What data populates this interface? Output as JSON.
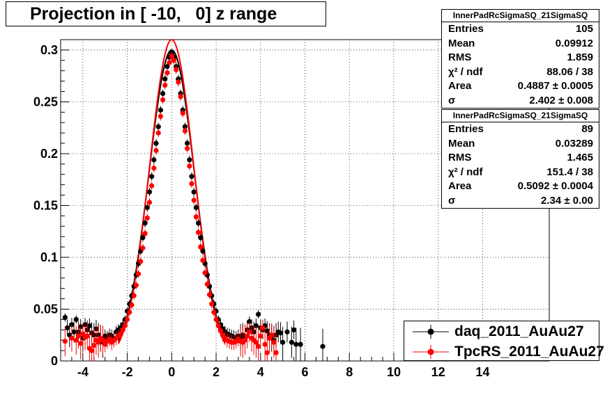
{
  "title": "Projection in [ -10,   0] z range",
  "stats": [
    {
      "header": "InnerPadRcSigmaSQ_21SigmaSQ",
      "rows": [
        [
          "Entries",
          "105"
        ],
        [
          "Mean",
          "0.09912"
        ],
        [
          "RMS",
          "1.859"
        ],
        [
          "χ² / ndf",
          "88.06 / 38"
        ],
        [
          "Area",
          "0.4887 ± 0.0005"
        ],
        [
          "σ",
          "2.402 ± 0.008"
        ]
      ]
    },
    {
      "header": "InnerPadRcSigmaSQ_21SigmaSQ",
      "rows": [
        [
          "Entries",
          "89"
        ],
        [
          "Mean",
          "0.03289"
        ],
        [
          "RMS",
          "1.465"
        ],
        [
          "χ² / ndf",
          "151.4 / 38"
        ],
        [
          "Area",
          "0.5092 ± 0.0004"
        ],
        [
          "σ",
          "2.34 ± 0.00"
        ]
      ]
    }
  ],
  "legend": [
    {
      "label": "daq_2011_AuAu27",
      "color": "#000000"
    },
    {
      "label": "TpcRS_2011_AuAu27",
      "color": "#ff0000"
    }
  ],
  "chart_data": {
    "type": "scatter",
    "title": "Projection in [ -10,   0] z range",
    "xlim": [
      -5,
      17
    ],
    "ylim": [
      0,
      0.31
    ],
    "x_ticks": [
      -4,
      -2,
      0,
      2,
      4,
      6,
      8,
      10,
      12,
      14
    ],
    "y_ticks": [
      0,
      0.05,
      0.1,
      0.15,
      0.2,
      0.25,
      0.3
    ],
    "grid": true,
    "legend_position": "bottom-right",
    "series": [
      {
        "name": "daq_2011_AuAu27",
        "color": "#000000",
        "points": [
          [
            -4.8,
            0.042
          ],
          [
            -4.7,
            0.032
          ],
          [
            -4.6,
            0.025
          ],
          [
            -4.5,
            0.035
          ],
          [
            -4.4,
            0.028
          ],
          [
            -4.3,
            0.04
          ],
          [
            -4.2,
            0.028
          ],
          [
            -4.1,
            0.033
          ],
          [
            -4.0,
            0.022
          ],
          [
            -3.9,
            0.035
          ],
          [
            -3.8,
            0.03
          ],
          [
            -3.7,
            0.034
          ],
          [
            -3.6,
            0.027
          ],
          [
            -3.5,
            0.025
          ],
          [
            -3.4,
            0.031
          ],
          [
            -3.3,
            0.025
          ],
          [
            -3.2,
            0.022
          ],
          [
            -3.1,
            0.018
          ],
          [
            -3.0,
            0.024
          ],
          [
            -2.9,
            0.022
          ],
          [
            -2.8,
            0.025
          ],
          [
            -2.7,
            0.024
          ],
          [
            -2.6,
            0.022
          ],
          [
            -2.5,
            0.028
          ],
          [
            -2.4,
            0.03
          ],
          [
            -2.3,
            0.032
          ],
          [
            -2.2,
            0.035
          ],
          [
            -2.1,
            0.04
          ],
          [
            -2.0,
            0.048
          ],
          [
            -1.9,
            0.055
          ],
          [
            -1.8,
            0.063
          ],
          [
            -1.7,
            0.072
          ],
          [
            -1.6,
            0.083
          ],
          [
            -1.5,
            0.094
          ],
          [
            -1.4,
            0.106
          ],
          [
            -1.3,
            0.119
          ],
          [
            -1.2,
            0.133
          ],
          [
            -1.1,
            0.148
          ],
          [
            -1.0,
            0.163
          ],
          [
            -0.9,
            0.178
          ],
          [
            -0.8,
            0.194
          ],
          [
            -0.7,
            0.21
          ],
          [
            -0.6,
            0.226
          ],
          [
            -0.5,
            0.242
          ],
          [
            -0.4,
            0.258
          ],
          [
            -0.3,
            0.272
          ],
          [
            -0.2,
            0.284
          ],
          [
            -0.1,
            0.293
          ],
          [
            0.0,
            0.297
          ],
          [
            0.1,
            0.293
          ],
          [
            0.2,
            0.284
          ],
          [
            0.3,
            0.272
          ],
          [
            0.4,
            0.258
          ],
          [
            0.5,
            0.242
          ],
          [
            0.6,
            0.226
          ],
          [
            0.7,
            0.21
          ],
          [
            0.8,
            0.194
          ],
          [
            0.9,
            0.178
          ],
          [
            1.0,
            0.163
          ],
          [
            1.1,
            0.148
          ],
          [
            1.2,
            0.133
          ],
          [
            1.3,
            0.119
          ],
          [
            1.4,
            0.106
          ],
          [
            1.5,
            0.094
          ],
          [
            1.6,
            0.083
          ],
          [
            1.7,
            0.072
          ],
          [
            1.8,
            0.063
          ],
          [
            1.9,
            0.055
          ],
          [
            2.0,
            0.048
          ],
          [
            2.1,
            0.04
          ],
          [
            2.2,
            0.035
          ],
          [
            2.3,
            0.031
          ],
          [
            2.4,
            0.028
          ],
          [
            2.5,
            0.026
          ],
          [
            2.6,
            0.025
          ],
          [
            2.7,
            0.024
          ],
          [
            2.8,
            0.023
          ],
          [
            2.9,
            0.022
          ],
          [
            3.0,
            0.024
          ],
          [
            3.1,
            0.023
          ],
          [
            3.2,
            0.025
          ],
          [
            3.3,
            0.022
          ],
          [
            3.4,
            0.03
          ],
          [
            3.5,
            0.038
          ],
          [
            3.6,
            0.032
          ],
          [
            3.7,
            0.028
          ],
          [
            3.8,
            0.034
          ],
          [
            3.9,
            0.045
          ],
          [
            4.0,
            0.032
          ],
          [
            4.1,
            0.03
          ],
          [
            4.2,
            0.034
          ],
          [
            4.3,
            0.029
          ],
          [
            4.4,
            0.025
          ],
          [
            4.5,
            0.022
          ],
          [
            4.6,
            0.02
          ],
          [
            4.7,
            0.025
          ],
          [
            4.8,
            0.028
          ],
          [
            4.9,
            0.027
          ],
          [
            5.0,
            0.018
          ],
          [
            5.2,
            0.028
          ],
          [
            5.4,
            0.018
          ],
          [
            5.5,
            0.03
          ],
          [
            5.6,
            0.016
          ],
          [
            5.8,
            0.016
          ],
          [
            6.8,
            0.014
          ]
        ]
      },
      {
        "name": "TpcRS_2011_AuAu27",
        "color": "#ff0000",
        "points": [
          [
            -4.8,
            0.019
          ],
          [
            -4.5,
            0.022
          ],
          [
            -4.3,
            0.02
          ],
          [
            -4.2,
            0.024
          ],
          [
            -4.1,
            0.017
          ],
          [
            -4.0,
            0.026
          ],
          [
            -3.9,
            0.023
          ],
          [
            -3.8,
            0.024
          ],
          [
            -3.7,
            0.012
          ],
          [
            -3.6,
            0.01
          ],
          [
            -3.5,
            0.015
          ],
          [
            -3.4,
            0.02
          ],
          [
            -3.3,
            0.018
          ],
          [
            -3.2,
            0.022
          ],
          [
            -3.1,
            0.02
          ],
          [
            -3.0,
            0.016
          ],
          [
            -2.9,
            0.019
          ],
          [
            -2.8,
            0.021
          ],
          [
            -2.7,
            0.018
          ],
          [
            -2.6,
            0.02
          ],
          [
            -2.5,
            0.022
          ],
          [
            -2.4,
            0.024
          ],
          [
            -2.3,
            0.026
          ],
          [
            -2.2,
            0.03
          ],
          [
            -2.1,
            0.034
          ],
          [
            -2.0,
            0.04
          ],
          [
            -1.9,
            0.047
          ],
          [
            -1.8,
            0.054
          ],
          [
            -1.7,
            0.063
          ],
          [
            -1.6,
            0.073
          ],
          [
            -1.5,
            0.084
          ],
          [
            -1.4,
            0.096
          ],
          [
            -1.3,
            0.109
          ],
          [
            -1.2,
            0.123
          ],
          [
            -1.1,
            0.138
          ],
          [
            -1.0,
            0.153
          ],
          [
            -0.9,
            0.169
          ],
          [
            -0.8,
            0.186
          ],
          [
            -0.7,
            0.203
          ],
          [
            -0.6,
            0.22
          ],
          [
            -0.5,
            0.236
          ],
          [
            -0.4,
            0.252
          ],
          [
            -0.3,
            0.266
          ],
          [
            -0.2,
            0.278
          ],
          [
            -0.1,
            0.288
          ],
          [
            0.0,
            0.294
          ],
          [
            0.1,
            0.29
          ],
          [
            0.2,
            0.281
          ],
          [
            0.3,
            0.269
          ],
          [
            0.4,
            0.255
          ],
          [
            0.5,
            0.239
          ],
          [
            0.6,
            0.222
          ],
          [
            0.7,
            0.205
          ],
          [
            0.8,
            0.188
          ],
          [
            0.9,
            0.171
          ],
          [
            1.0,
            0.155
          ],
          [
            1.1,
            0.139
          ],
          [
            1.2,
            0.124
          ],
          [
            1.3,
            0.11
          ],
          [
            1.4,
            0.097
          ],
          [
            1.5,
            0.085
          ],
          [
            1.6,
            0.074
          ],
          [
            1.7,
            0.064
          ],
          [
            1.8,
            0.055
          ],
          [
            1.9,
            0.047
          ],
          [
            2.0,
            0.04
          ],
          [
            2.1,
            0.034
          ],
          [
            2.2,
            0.029
          ],
          [
            2.3,
            0.025
          ],
          [
            2.4,
            0.022
          ],
          [
            2.5,
            0.02
          ],
          [
            2.6,
            0.019
          ],
          [
            2.7,
            0.018
          ],
          [
            2.8,
            0.018
          ],
          [
            2.9,
            0.019
          ],
          [
            3.0,
            0.021
          ],
          [
            3.1,
            0.019
          ],
          [
            3.2,
            0.018
          ],
          [
            3.3,
            0.02
          ],
          [
            3.4,
            0.024
          ],
          [
            3.5,
            0.028
          ],
          [
            3.6,
            0.022
          ],
          [
            3.7,
            0.02
          ],
          [
            3.8,
            0.018
          ],
          [
            3.9,
            0.014
          ],
          [
            4.0,
            0.024
          ],
          [
            4.1,
            0.032
          ],
          [
            4.2,
            0.016
          ],
          [
            4.3,
            0.008
          ],
          [
            4.4,
            0.022
          ],
          [
            4.5,
            0.025
          ],
          [
            4.6,
            0.018
          ],
          [
            4.7,
            0.008
          ]
        ]
      }
    ],
    "fits": [
      {
        "color": "#000000",
        "sigma": 2.402
      },
      {
        "color": "#ff0000",
        "sigma": 2.34
      }
    ]
  }
}
